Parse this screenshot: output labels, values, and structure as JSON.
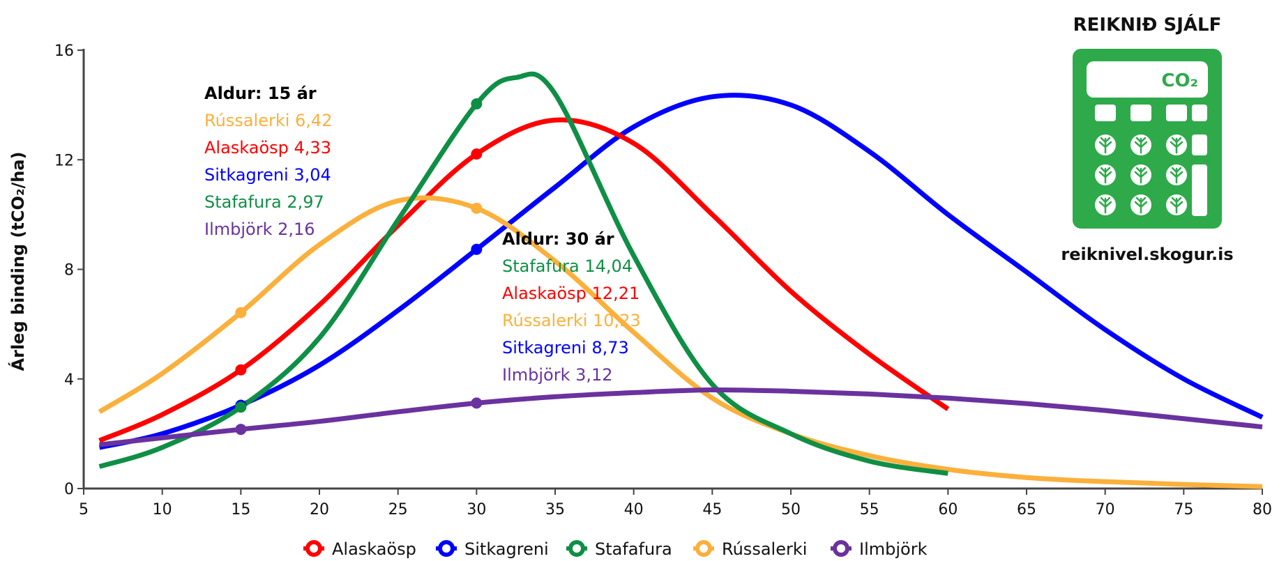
{
  "chart_data": {
    "type": "line",
    "ylabel": "Árleg binding (tCO₂/ha)",
    "xlim": [
      5,
      80
    ],
    "ylim": [
      0,
      16
    ],
    "x_ticks": [
      5,
      10,
      15,
      20,
      25,
      30,
      35,
      40,
      45,
      50,
      55,
      60,
      65,
      70,
      75,
      80
    ],
    "y_ticks": [
      0,
      4,
      8,
      12,
      16
    ],
    "series": [
      {
        "name": "Alaskaösp",
        "color": "#ff0000",
        "x": [
          6,
          10,
          15,
          20,
          25,
          30,
          35,
          40,
          45,
          50,
          55,
          60
        ],
        "y": [
          1.75,
          2.7,
          4.33,
          6.7,
          9.6,
          12.21,
          13.45,
          12.6,
          10.0,
          7.2,
          4.9,
          2.9
        ]
      },
      {
        "name": "Sitkagreni",
        "color": "#0000ff",
        "x": [
          6,
          10,
          15,
          20,
          25,
          30,
          35,
          40,
          45,
          50,
          55,
          60,
          65,
          70,
          75,
          80
        ],
        "y": [
          1.5,
          2.0,
          3.04,
          4.5,
          6.5,
          8.73,
          11.0,
          13.2,
          14.3,
          14.0,
          12.3,
          10.0,
          7.9,
          5.8,
          4.0,
          2.6
        ]
      },
      {
        "name": "Stafafura",
        "color": "#0f8f45",
        "x": [
          6,
          10,
          15,
          20,
          25,
          30,
          32.5,
          35,
          40,
          45,
          50,
          55,
          60
        ],
        "y": [
          0.8,
          1.5,
          2.97,
          5.5,
          9.8,
          14.04,
          15.0,
          14.4,
          8.5,
          3.8,
          2.0,
          1.0,
          0.55
        ]
      },
      {
        "name": "Rússalerki",
        "color": "#fbb03b",
        "x": [
          6,
          10,
          15,
          20,
          25,
          30,
          35,
          40,
          45,
          50,
          55,
          60,
          65,
          70,
          75,
          80
        ],
        "y": [
          2.8,
          4.2,
          6.42,
          8.9,
          10.5,
          10.23,
          8.3,
          5.7,
          3.3,
          2.0,
          1.2,
          0.7,
          0.4,
          0.25,
          0.15,
          0.07
        ]
      },
      {
        "name": "Ilmbjörk",
        "color": "#6a329f",
        "x": [
          6,
          10,
          15,
          20,
          25,
          30,
          35,
          40,
          45,
          50,
          55,
          60,
          65,
          70,
          75,
          80
        ],
        "y": [
          1.6,
          1.85,
          2.16,
          2.45,
          2.8,
          3.12,
          3.35,
          3.5,
          3.6,
          3.55,
          3.45,
          3.3,
          3.1,
          2.85,
          2.55,
          2.25
        ]
      }
    ],
    "markers": [
      {
        "series": "Rússalerki",
        "x": 15,
        "y": 6.42
      },
      {
        "series": "Alaskaösp",
        "x": 15,
        "y": 4.33
      },
      {
        "series": "Sitkagreni",
        "x": 15,
        "y": 3.04
      },
      {
        "series": "Stafafura",
        "x": 15,
        "y": 2.97
      },
      {
        "series": "Ilmbjörk",
        "x": 15,
        "y": 2.16
      },
      {
        "series": "Stafafura",
        "x": 30,
        "y": 14.04
      },
      {
        "series": "Alaskaösp",
        "x": 30,
        "y": 12.21
      },
      {
        "series": "Rússalerki",
        "x": 30,
        "y": 10.23
      },
      {
        "series": "Sitkagreni",
        "x": 30,
        "y": 8.73
      },
      {
        "series": "Ilmbjörk",
        "x": 30,
        "y": 3.12
      }
    ],
    "annotations": [
      {
        "heading": "Aldur: 15 ár",
        "lines": [
          {
            "text": "Rússalerki 6,42",
            "color": "#fbb03b"
          },
          {
            "text": "Alaskaösp 4,33",
            "color": "#ff0000"
          },
          {
            "text": "Sitkagreni 3,04",
            "color": "#0000ff"
          },
          {
            "text": "Stafafura 2,97",
            "color": "#0f8f45"
          },
          {
            "text": "Ilmbjörk 2,16",
            "color": "#6a329f"
          }
        ]
      },
      {
        "heading": "Aldur: 30 ár",
        "lines": [
          {
            "text": "Stafafura 14,04",
            "color": "#0f8f45"
          },
          {
            "text": "Alaskaösp 12,21",
            "color": "#ff0000"
          },
          {
            "text": "Rússalerki 10,23",
            "color": "#fbb03b"
          },
          {
            "text": "Sitkagreni 8,73",
            "color": "#0000ff"
          },
          {
            "text": "Ilmbjörk 3,12",
            "color": "#6a329f"
          }
        ]
      }
    ],
    "legend": [
      "Alaskaösp",
      "Sitkagreni",
      "Stafafura",
      "Rússalerki",
      "Ilmbjörk"
    ]
  },
  "calculator": {
    "title": "REIKNIÐ SJÁLF",
    "url": "reiknivel.skogur.is",
    "display_text": "CO₂",
    "color": "#2eaa4a",
    "icon": "calculator-icon"
  }
}
